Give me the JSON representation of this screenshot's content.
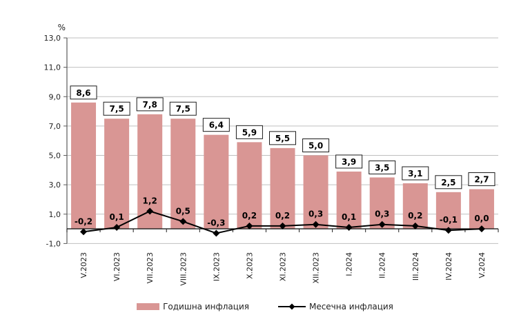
{
  "figure": {
    "background": "#ffffff"
  },
  "chart_data": {
    "type": "bar",
    "title": "",
    "ylabel": "%",
    "xlabel": "",
    "categories": [
      "V.2023",
      "VI.2023",
      "VII.2023",
      "VIII.2023",
      "IX.2023",
      "X.2023",
      "XI.2023",
      "XII.2023",
      "I.2024",
      "II.2024",
      "III.2024",
      "IV.2024",
      "V.2024"
    ],
    "series": [
      {
        "name": "Годишна инфлация",
        "type": "bar",
        "color": "#d99694",
        "values": [
          8.6,
          7.5,
          7.8,
          7.5,
          6.4,
          5.9,
          5.5,
          5.0,
          3.9,
          3.5,
          3.1,
          2.5,
          2.7
        ],
        "labels": [
          "8,6",
          "7,5",
          "7,8",
          "7,5",
          "6,4",
          "5,9",
          "5,5",
          "5,0",
          "3,9",
          "3,5",
          "3,1",
          "2,5",
          "2,7"
        ]
      },
      {
        "name": "Месечна инфлация",
        "type": "line",
        "color": "#000000",
        "marker": "diamond",
        "values": [
          -0.2,
          0.1,
          1.2,
          0.5,
          -0.3,
          0.2,
          0.2,
          0.3,
          0.1,
          0.3,
          0.2,
          -0.1,
          0.0
        ],
        "labels": [
          "-0,2",
          "0,1",
          "1,2",
          "0,5",
          "-0,3",
          "0,2",
          "0,2",
          "0,3",
          "0,1",
          "0,3",
          "0,2",
          "-0,1",
          "0,0"
        ]
      }
    ],
    "ylim": [
      -1,
      13
    ],
    "yticks": [
      13,
      11,
      9,
      7,
      5,
      3,
      1,
      -1
    ],
    "ytick_labels": [
      "13,0",
      "11,0",
      "9,0",
      "7,0",
      "5,0",
      "3,0",
      "1,0",
      "-1,0"
    ],
    "grid": true,
    "legend_position": "bottom",
    "colors": {
      "gridline": "#bfbfbf",
      "axis": "#595959",
      "zero_axis": "#1a1a1a",
      "label_box_border": "#1a1a1a",
      "label_box_fill": "#ffffff",
      "text": "#1f1f1f",
      "data_label_text": "#000000"
    }
  }
}
